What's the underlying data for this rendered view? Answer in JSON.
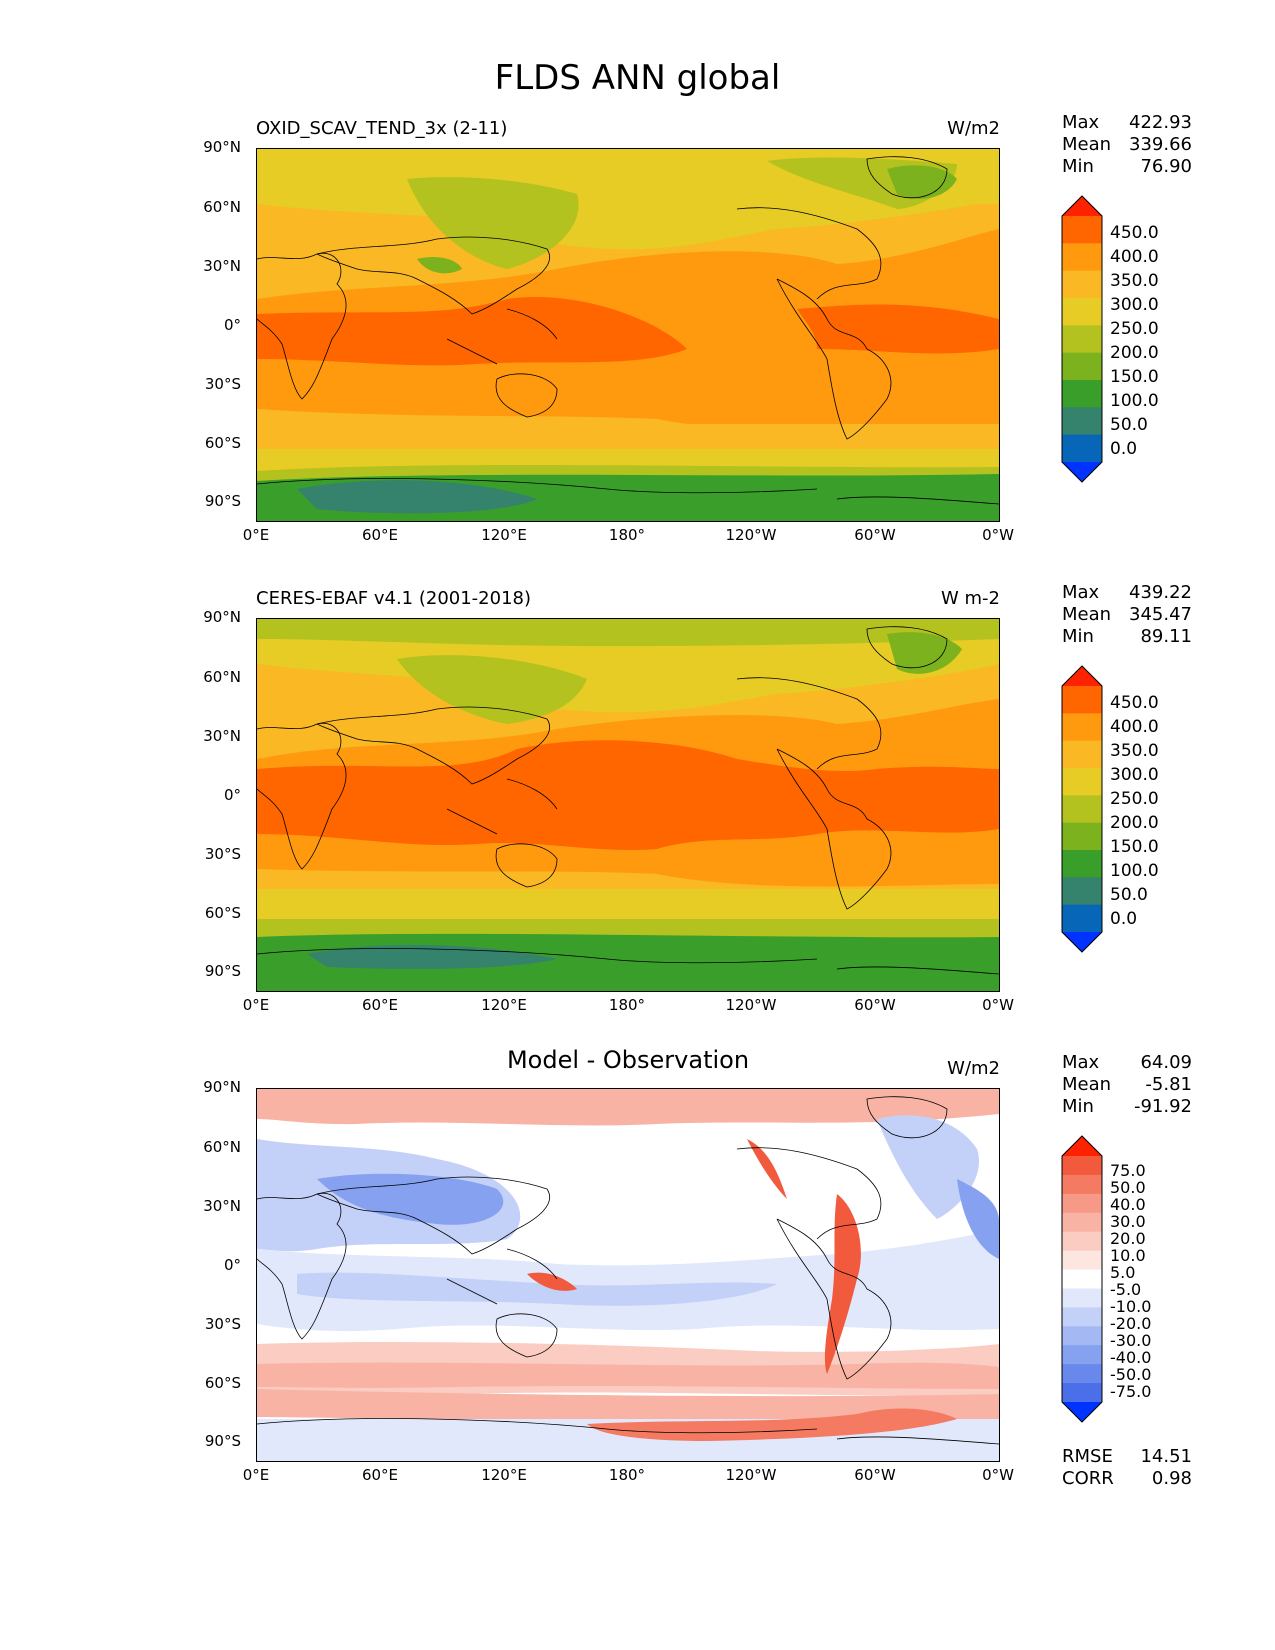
{
  "title": "FLDS ANN global",
  "lat_labels": [
    "90°N",
    "60°N",
    "30°N",
    "0°",
    "30°S",
    "60°S",
    "90°S"
  ],
  "lon_labels": [
    "0°E",
    "60°E",
    "120°E",
    "180°",
    "120°W",
    "60°W",
    "0°W"
  ],
  "panels": [
    {
      "title": "OXID_SCAV_TEND_3x (2-11)",
      "units": "W/m2",
      "stats": {
        "max_label": "Max",
        "max": "422.93",
        "mean_label": "Mean",
        "mean": "339.66",
        "min_label": "Min",
        "min": "76.90"
      },
      "colorbar_labels": [
        "450.0",
        "400.0",
        "350.0",
        "300.0",
        "250.0",
        "200.0",
        "150.0",
        "100.0",
        "50.0",
        "0.0"
      ],
      "colorbar_colors": [
        "#ff2200",
        "#ff6600",
        "#ff9a0f",
        "#f9b824",
        "#e6cc25",
        "#b3c21f",
        "#7cb21d",
        "#3a9e2a",
        "#35826d",
        "#0866b8",
        "#0033ff"
      ]
    },
    {
      "title": "CERES-EBAF v4.1 (2001-2018)",
      "units": "W m-2",
      "stats": {
        "max_label": "Max",
        "max": "439.22",
        "mean_label": "Mean",
        "mean": "345.47",
        "min_label": "Min",
        "min": "89.11"
      },
      "colorbar_labels": [
        "450.0",
        "400.0",
        "350.0",
        "300.0",
        "250.0",
        "200.0",
        "150.0",
        "100.0",
        "50.0",
        "0.0"
      ],
      "colorbar_colors": [
        "#ff2200",
        "#ff6600",
        "#ff9a0f",
        "#f9b824",
        "#e6cc25",
        "#b3c21f",
        "#7cb21d",
        "#3a9e2a",
        "#35826d",
        "#0866b8",
        "#0033ff"
      ]
    },
    {
      "title": "Model - Observation",
      "units": "W/m2",
      "stats": {
        "max_label": "Max",
        "max": "64.09",
        "mean_label": "Mean",
        "mean": "-5.81",
        "min_label": "Min",
        "min": "-91.92"
      },
      "colorbar_labels": [
        "75.0",
        "50.0",
        "40.0",
        "30.0",
        "20.0",
        "10.0",
        "5.0",
        "-5.0",
        "-10.0",
        "-20.0",
        "-30.0",
        "-40.0",
        "-50.0",
        "-75.0"
      ],
      "colorbar_colors": [
        "#ff2200",
        "#f25a3d",
        "#f47a62",
        "#f79987",
        "#f9b3a4",
        "#fbcdc2",
        "#fde6df",
        "#ffffff",
        "#e1e8fb",
        "#c3d0f7",
        "#a4b9f3",
        "#86a1ef",
        "#6889eb",
        "#4a6fe8",
        "#0033ff"
      ],
      "footer": {
        "rmse_label": "RMSE",
        "rmse": "14.51",
        "corr_label": "CORR",
        "corr": "0.98"
      }
    }
  ]
}
